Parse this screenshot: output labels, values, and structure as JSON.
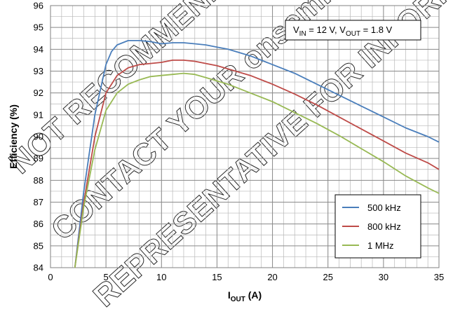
{
  "watermark": {
    "lines": [
      "NOT RECOMMENDED FOR NEW DESIGN",
      "CONTACT YOUR onsemi",
      "REPRESENTATIVE FOR INFORMATION"
    ],
    "color": "#000000"
  },
  "conditions": {
    "vin_prefix": "V",
    "vin_sub": "IN",
    "vin_value": " = 12 V, V",
    "vout_sub": "OUT",
    "vout_value": " = 1.8 V"
  },
  "chart_data": {
    "type": "line",
    "title": "",
    "xlabel_main": "I",
    "xlabel_sub": "OUT",
    "xlabel_unit": " (A)",
    "ylabel": "Efficiency (%)",
    "xlim": [
      0,
      35
    ],
    "ylim": [
      84,
      96
    ],
    "xticks": [
      0,
      5,
      10,
      15,
      20,
      25,
      30,
      35
    ],
    "yticks": [
      84,
      85,
      86,
      87,
      88,
      89,
      90,
      91,
      92,
      93,
      94,
      95,
      96
    ],
    "x_minor_step": 1,
    "y_minor_step": 0.5,
    "grid": true,
    "legend_position": "bottom-right",
    "series": [
      {
        "name": "500 kHz",
        "color": "#4a7ebb",
        "x": [
          2.2,
          3,
          4,
          5,
          5.5,
          6,
          7,
          8,
          9,
          10,
          11,
          12,
          13,
          14,
          15,
          16,
          18,
          20,
          22,
          24,
          26,
          28,
          30,
          32,
          34,
          35
        ],
        "y": [
          84,
          87.5,
          91,
          93.3,
          93.9,
          94.2,
          94.4,
          94.4,
          94.35,
          94.25,
          94.3,
          94.3,
          94.25,
          94.2,
          94.1,
          94.0,
          93.7,
          93.3,
          92.9,
          92.4,
          91.9,
          91.4,
          90.9,
          90.4,
          90.0,
          89.75
        ]
      },
      {
        "name": "800 kHz",
        "color": "#be4b48",
        "x": [
          2.2,
          3,
          4,
          5,
          6,
          7,
          8,
          9,
          10,
          11,
          12,
          13,
          14,
          15,
          16,
          18,
          20,
          22,
          24,
          26,
          28,
          30,
          32,
          34,
          35
        ],
        "y": [
          84,
          87,
          90,
          92.0,
          92.8,
          93.15,
          93.3,
          93.35,
          93.4,
          93.5,
          93.5,
          93.45,
          93.35,
          93.25,
          93.1,
          92.8,
          92.4,
          91.95,
          91.45,
          90.9,
          90.35,
          89.8,
          89.25,
          88.8,
          88.5
        ]
      },
      {
        "name": "1 MHz",
        "color": "#98b954",
        "x": [
          2.2,
          3,
          4,
          5,
          6,
          7,
          8,
          9,
          10,
          11,
          12,
          13,
          14,
          15,
          16,
          18,
          20,
          22,
          24,
          26,
          28,
          30,
          32,
          34,
          35
        ],
        "y": [
          84,
          86.8,
          89.4,
          91.2,
          92.0,
          92.4,
          92.6,
          92.75,
          92.8,
          92.85,
          92.9,
          92.85,
          92.7,
          92.55,
          92.4,
          92.0,
          91.6,
          91.1,
          90.6,
          90.05,
          89.45,
          88.85,
          88.2,
          87.65,
          87.4
        ]
      }
    ]
  }
}
